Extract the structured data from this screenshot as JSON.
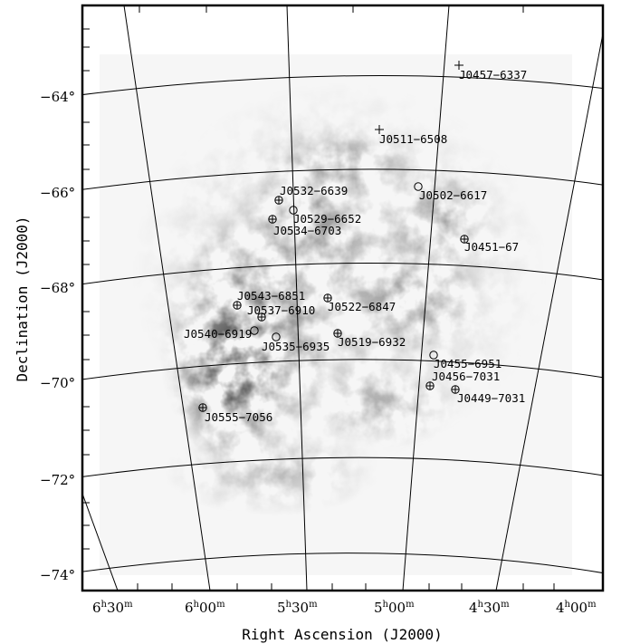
{
  "chart_data": {
    "type": "map",
    "xlabel": "Right Ascension (J2000)",
    "ylabel": "Declination (J2000)",
    "ra_ticks": [
      {
        "h": "6",
        "m": "30"
      },
      {
        "h": "6",
        "m": "00"
      },
      {
        "h": "5",
        "m": "30"
      },
      {
        "h": "5",
        "m": "00"
      },
      {
        "h": "4",
        "m": "30"
      },
      {
        "h": "4",
        "m": "00"
      }
    ],
    "dec_ticks": [
      "−64°",
      "−66°",
      "−68°",
      "−70°",
      "−72°",
      "−74°"
    ],
    "grid": true,
    "sources": [
      {
        "name": "J0457−6337",
        "marker": "plus",
        "ra": "04:57",
        "dec": -63.6
      },
      {
        "name": "J0511−6508",
        "marker": "plus",
        "ra": "05:11",
        "dec": -65.1
      },
      {
        "name": "J0532−6639",
        "marker": "circle-plus",
        "ra": "05:32",
        "dec": -66.65
      },
      {
        "name": "J0502−6617",
        "marker": "circle",
        "ra": "05:02",
        "dec": -66.3
      },
      {
        "name": "J0529−6652",
        "marker": "circle",
        "ra": "05:29",
        "dec": -66.9
      },
      {
        "name": "J0534−6703",
        "marker": "circle-plus",
        "ra": "05:34",
        "dec": -67.05
      },
      {
        "name": "J0451−67",
        "marker": "circle-plus",
        "ra": "04:51",
        "dec": -67.0
      },
      {
        "name": "J0543−6851",
        "marker": "circle-plus",
        "ra": "05:43",
        "dec": -68.85
      },
      {
        "name": "J0537−6910",
        "marker": "circle-plus",
        "ra": "05:37",
        "dec": -69.17
      },
      {
        "name": "J0522−6847",
        "marker": "circle-plus",
        "ra": "05:22",
        "dec": -68.78
      },
      {
        "name": "J0540−6919",
        "marker": "circle",
        "ra": "05:40",
        "dec": -69.32
      },
      {
        "name": "J0535−6935",
        "marker": "circle",
        "ra": "05:35",
        "dec": -69.58
      },
      {
        "name": "J0519−6932",
        "marker": "circle-plus",
        "ra": "05:19",
        "dec": -69.53
      },
      {
        "name": "J0455−6951",
        "marker": "circle",
        "ra": "04:55",
        "dec": -69.85
      },
      {
        "name": "J0456−7031",
        "marker": "circle-plus",
        "ra": "04:56",
        "dec": -70.52
      },
      {
        "name": "J0449−7031",
        "marker": "circle-plus",
        "ra": "04:49",
        "dec": -70.52
      },
      {
        "name": "J0555−7056",
        "marker": "circle-plus",
        "ra": "05:55",
        "dec": -70.93
      }
    ]
  }
}
